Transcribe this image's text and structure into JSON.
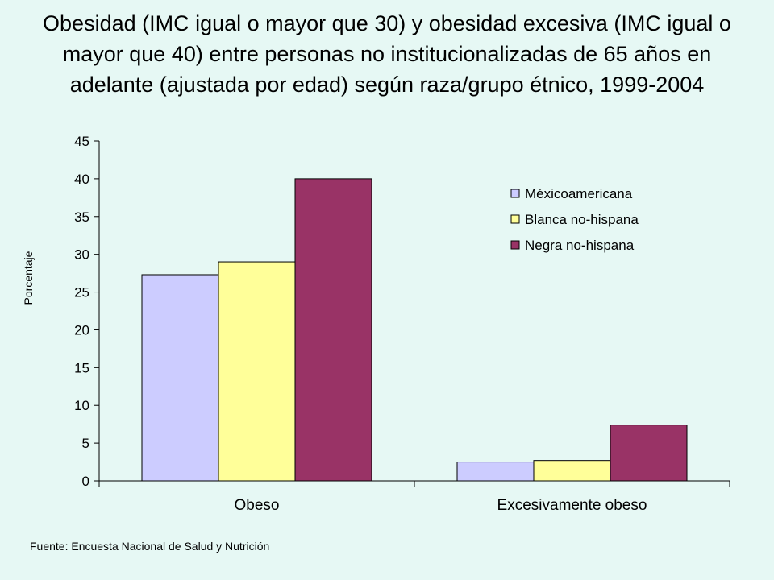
{
  "chart_data": {
    "type": "bar",
    "title": "Obesidad (IMC igual o mayor que 30) y obesidad excesiva (IMC igual o mayor que 40) entre personas no institucionalizadas de 65 años en adelante (ajustada por edad) según raza/grupo étnico, 1999-2004",
    "xlabel": "",
    "ylabel": "Porcentaje",
    "ylim": [
      0,
      45
    ],
    "yticks": [
      0,
      5,
      10,
      15,
      20,
      25,
      30,
      35,
      40,
      45
    ],
    "categories": [
      "Obeso",
      "Excesivamente obeso"
    ],
    "series": [
      {
        "name": "Méxicoamericana",
        "values": [
          27.3,
          2.5
        ],
        "color": "#ccccff"
      },
      {
        "name": "Blanca no-hispana",
        "values": [
          29.0,
          2.7
        ],
        "color": "#ffff99"
      },
      {
        "name": "Negra no-hispana",
        "values": [
          40.0,
          7.4
        ],
        "color": "#993366"
      }
    ],
    "legend_position": "top-right",
    "grid": false
  },
  "source_note": "Fuente: Encuesta Nacional de Salud y Nutrición"
}
